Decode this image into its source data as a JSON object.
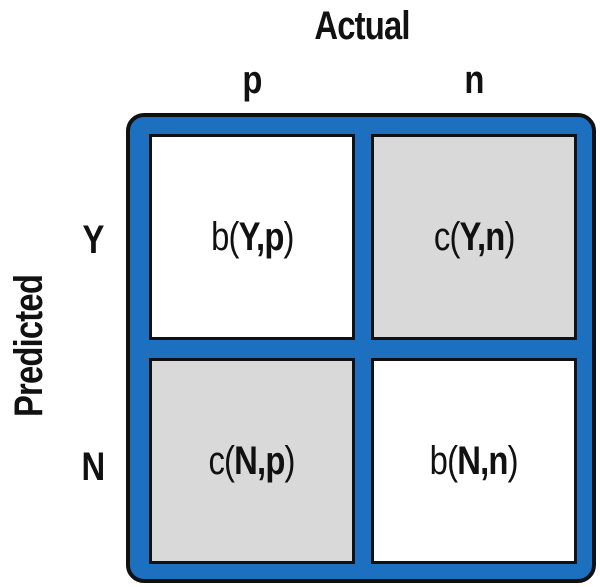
{
  "titles": {
    "actual": "Actual",
    "predicted": "Predicted"
  },
  "columns": [
    "p",
    "n"
  ],
  "rows": [
    "Y",
    "N"
  ],
  "cells": [
    {
      "fn": "b",
      "open": "(",
      "row": "Y",
      "sep": ",",
      "col": "p",
      "close": ")",
      "kind": "benefit"
    },
    {
      "fn": "c",
      "open": "(",
      "row": "Y",
      "sep": ",",
      "col": "n",
      "close": ")",
      "kind": "cost"
    },
    {
      "fn": "c",
      "open": "(",
      "row": "N",
      "sep": ",",
      "col": "p",
      "close": ")",
      "kind": "cost"
    },
    {
      "fn": "b",
      "open": "(",
      "row": "N",
      "sep": ",",
      "col": "n",
      "close": ")",
      "kind": "benefit"
    }
  ],
  "colors": {
    "frame": "#1d6fc0",
    "benefit_fill": "#ffffff",
    "cost_fill": "#d9d9d9",
    "outline": "#111111"
  }
}
